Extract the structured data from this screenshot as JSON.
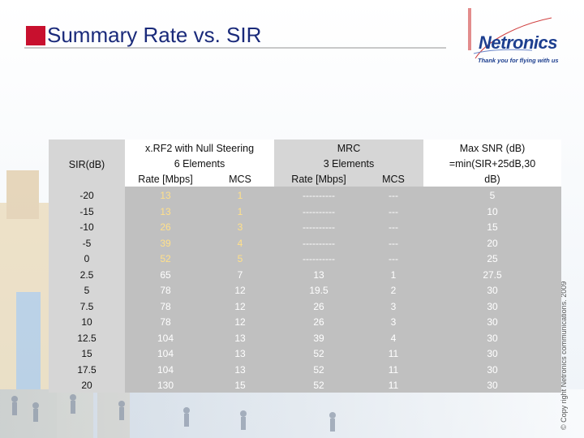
{
  "slide": {
    "title": "Summary Rate vs. SIR",
    "logo_name": "Netronics",
    "logo_tagline": "Thank you for flying with us",
    "copyright": "© Copy right Netronics communications. 2009",
    "colors": {
      "title": "#1a2a7a",
      "accent_square": "#c8102e",
      "logo": "#1d3f8f"
    }
  },
  "table": {
    "headers": {
      "sir": "SIR(dB)",
      "xrf2_line1": "x.RF2 with Null Steering",
      "xrf2_line2": "6 Elements",
      "xrf2_rate": "Rate [Mbps]",
      "xrf2_mcs": "MCS",
      "mrc_line1": "MRC",
      "mrc_line2": "3 Elements",
      "mrc_rate": "Rate [Mbps]",
      "mrc_mcs": "MCS",
      "max_line1": "Max SNR (dB)",
      "max_line2": "=min(SIR+25dB,30",
      "max_line3": "dB)"
    },
    "rows": [
      {
        "sir": "-20",
        "xrf2_rate": "13",
        "xrf2_mcs": "1",
        "mrc_rate": "----------",
        "mrc_mcs": "---",
        "max_snr": "5"
      },
      {
        "sir": "-15",
        "xrf2_rate": "13",
        "xrf2_mcs": "1",
        "mrc_rate": "----------",
        "mrc_mcs": "---",
        "max_snr": "10"
      },
      {
        "sir": "-10",
        "xrf2_rate": "26",
        "xrf2_mcs": "3",
        "mrc_rate": "----------",
        "mrc_mcs": "---",
        "max_snr": "15"
      },
      {
        "sir": "-5",
        "xrf2_rate": "39",
        "xrf2_mcs": "4",
        "mrc_rate": "----------",
        "mrc_mcs": "---",
        "max_snr": "20"
      },
      {
        "sir": "0",
        "xrf2_rate": "52",
        "xrf2_mcs": "5",
        "mrc_rate": "----------",
        "mrc_mcs": "---",
        "max_snr": "25"
      },
      {
        "sir": "2.5",
        "xrf2_rate": "65",
        "xrf2_mcs": "7",
        "mrc_rate": "13",
        "mrc_mcs": "1",
        "max_snr": "27.5"
      },
      {
        "sir": "5",
        "xrf2_rate": "78",
        "xrf2_mcs": "12",
        "mrc_rate": "19.5",
        "mrc_mcs": "2",
        "max_snr": "30"
      },
      {
        "sir": "7.5",
        "xrf2_rate": "78",
        "xrf2_mcs": "12",
        "mrc_rate": "26",
        "mrc_mcs": "3",
        "max_snr": "30"
      },
      {
        "sir": "10",
        "xrf2_rate": "78",
        "xrf2_mcs": "12",
        "mrc_rate": "26",
        "mrc_mcs": "3",
        "max_snr": "30"
      },
      {
        "sir": "12.5",
        "xrf2_rate": "104",
        "xrf2_mcs": "13",
        "mrc_rate": "39",
        "mrc_mcs": "4",
        "max_snr": "30"
      },
      {
        "sir": "15",
        "xrf2_rate": "104",
        "xrf2_mcs": "13",
        "mrc_rate": "52",
        "mrc_mcs": "11",
        "max_snr": "30"
      },
      {
        "sir": "17.5",
        "xrf2_rate": "104",
        "xrf2_mcs": "13",
        "mrc_rate": "52",
        "mrc_mcs": "11",
        "max_snr": "30"
      },
      {
        "sir": "20",
        "xrf2_rate": "130",
        "xrf2_mcs": "15",
        "mrc_rate": "52",
        "mrc_mcs": "11",
        "max_snr": "30"
      }
    ]
  }
}
